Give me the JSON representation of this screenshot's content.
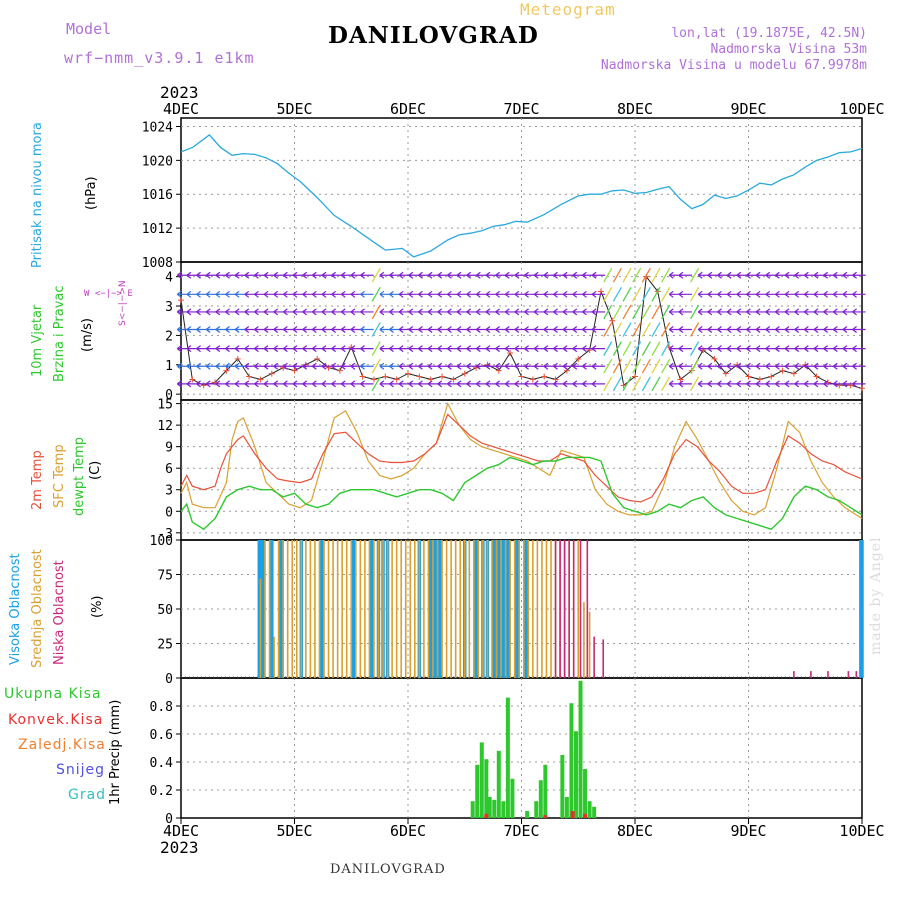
{
  "header": {
    "model_label": "Model",
    "model_name": "wrf−nmm_v3.9.1  e1km",
    "station": "DANILOVGRAD",
    "meteogram": "Meteogram",
    "lonlat": "lon,lat (19.1875E, 42.5N)",
    "elevation": "Nadmorska Visina 53m",
    "model_elevation": "Nadmorska Visina u modelu 67.9978m"
  },
  "footer": {
    "station": "DANILOVGRAD",
    "credit": "made by Angel"
  },
  "time_axis": {
    "labels": [
      "4DEC",
      "5DEC",
      "6DEC",
      "7DEC",
      "8DEC",
      "9DEC",
      "10DEC"
    ],
    "year": "2023"
  },
  "panels": {
    "pressure": {
      "label": "Pritisak na nivou mora",
      "unit": "(hPa)"
    },
    "wind": {
      "label1": "10m  Vjetar",
      "label2": "Brzina  i  Pravac",
      "unit": "(m/s)",
      "compass": "W  <−|−>  E",
      "compass_v": "S<−|−>N"
    },
    "temp": {
      "label1": "2m Temp",
      "label2": "SFC Temp",
      "label3": "dewpt Temp",
      "unit": "(C)"
    },
    "cloud": {
      "label1": "Visoka Oblacnost",
      "label2": "Srednja Oblacnost",
      "label3": "Niska Oblacnost",
      "unit": "(%)"
    },
    "precip": {
      "label": "1hr  Precip  (mm)",
      "legend": [
        "Ukupna Kisa",
        "Konvek.Kisa",
        "Zaledj.Kisa",
        "Snijeg",
        "Grad"
      ]
    }
  },
  "colors": {
    "pressure": "#29a9e0",
    "temp2m": "#e8503a",
    "sfc": "#d9a030",
    "dewpt": "#2ec82e",
    "high_cloud": "#1aa0e6",
    "mid_cloud": "#d9a030",
    "low_cloud": "#c8287a",
    "rain": "#2ec82e",
    "conv": "#e83030",
    "freezing": "#f08030",
    "snow": "#5050e0",
    "hail": "#30c0c0",
    "wind_barb": "#8020d0"
  },
  "chart_data": [
    {
      "type": "line",
      "title": "Pritisak na nivou mora",
      "ylabel": "(hPa)",
      "ylim": [
        1008,
        1025
      ],
      "yticks": [
        1008,
        1012,
        1016,
        1020,
        1024
      ],
      "xlim": [
        0,
        6
      ],
      "series": [
        {
          "x": [
            0,
            0.1,
            0.2,
            0.25,
            0.35,
            0.45,
            0.55,
            0.65,
            0.75,
            0.85,
            0.95,
            1.05,
            1.2,
            1.35,
            1.5,
            1.65,
            1.8,
            1.95,
            2.05,
            2.2,
            2.35,
            2.45,
            2.55,
            2.65,
            2.75,
            2.85,
            2.95,
            3.05,
            3.2,
            3.35,
            3.5,
            3.6,
            3.7,
            3.8,
            3.9,
            4.0,
            4.1,
            4.2,
            4.3,
            4.4,
            4.5,
            4.6,
            4.7,
            4.8,
            4.9,
            5.0,
            5.1,
            5.2,
            5.3,
            5.4,
            5.5,
            5.6,
            5.7,
            5.8,
            5.9,
            6.0
          ],
          "y": [
            1021,
            1021.5,
            1022.5,
            1023,
            1021.5,
            1020.6,
            1020.8,
            1020.7,
            1020.3,
            1019.6,
            1018.5,
            1017.5,
            1015.6,
            1013.5,
            1012.2,
            1010.8,
            1009.4,
            1009.6,
            1008.6,
            1009.3,
            1010.6,
            1011.2,
            1011.4,
            1011.7,
            1012.2,
            1012.4,
            1012.8,
            1012.7,
            1013.6,
            1014.8,
            1015.8,
            1016.0,
            1016.0,
            1016.4,
            1016.5,
            1016.1,
            1016.2,
            1016.6,
            1016.9,
            1015.4,
            1014.3,
            1014.8,
            1015.9,
            1015.5,
            1015.8,
            1016.5,
            1017.3,
            1017.1,
            1017.8,
            1018.3,
            1019.2,
            1020.0,
            1020.4,
            1020.9,
            1021.0,
            1021.4
          ]
        }
      ]
    },
    {
      "type": "line",
      "title": "10m Vjetar Brzina i Pravac",
      "ylabel": "(m/s)",
      "ylim": [
        -0.2,
        4.5
      ],
      "yticks": [
        0,
        1,
        2,
        3,
        4
      ],
      "xlim": [
        0,
        6
      ],
      "series": [
        {
          "x": [
            0,
            0.1,
            0.2,
            0.3,
            0.4,
            0.5,
            0.6,
            0.7,
            0.8,
            0.9,
            1.0,
            1.1,
            1.2,
            1.3,
            1.4,
            1.5,
            1.6,
            1.7,
            1.8,
            1.9,
            2.0,
            2.1,
            2.2,
            2.3,
            2.4,
            2.5,
            2.6,
            2.7,
            2.8,
            2.9,
            3.0,
            3.1,
            3.2,
            3.3,
            3.4,
            3.5,
            3.6,
            3.7,
            3.8,
            3.9,
            4.0,
            4.1,
            4.2,
            4.3,
            4.4,
            4.5,
            4.6,
            4.7,
            4.8,
            4.9,
            5.0,
            5.1,
            5.2,
            5.3,
            5.4,
            5.5,
            5.6,
            5.7,
            5.8,
            5.9,
            6.0
          ],
          "y": [
            3.2,
            0.5,
            0.3,
            0.4,
            0.8,
            1.2,
            0.6,
            0.5,
            0.7,
            0.9,
            0.8,
            1.0,
            1.2,
            0.9,
            0.8,
            1.6,
            0.6,
            0.5,
            0.6,
            0.5,
            0.7,
            0.6,
            0.5,
            0.6,
            0.5,
            0.7,
            0.9,
            1.0,
            0.8,
            1.4,
            0.6,
            0.5,
            0.6,
            0.5,
            0.8,
            1.2,
            1.5,
            3.5,
            2.5,
            0.3,
            0.6,
            4.0,
            3.5,
            1.6,
            0.5,
            0.8,
            1.5,
            1.2,
            0.7,
            1.0,
            0.6,
            0.5,
            0.6,
            0.8,
            0.7,
            1.0,
            0.6,
            0.4,
            0.3,
            0.3,
            0.2
          ]
        }
      ]
    },
    {
      "type": "line",
      "title": "2m Temp / SFC Temp / dewpt Temp",
      "ylabel": "(C)",
      "ylim": [
        -4,
        15.5
      ],
      "yticks": [
        -3,
        0,
        3,
        6,
        9,
        12,
        15
      ],
      "xlim": [
        0,
        6
      ],
      "series": [
        {
          "name": "2m Temp",
          "x": [
            0,
            0.05,
            0.1,
            0.2,
            0.3,
            0.35,
            0.4,
            0.5,
            0.55,
            0.65,
            0.75,
            0.85,
            0.95,
            1.05,
            1.15,
            1.25,
            1.35,
            1.45,
            1.55,
            1.65,
            1.75,
            1.85,
            1.95,
            2.05,
            2.15,
            2.25,
            2.35,
            2.45,
            2.55,
            2.65,
            2.75,
            2.85,
            2.95,
            3.05,
            3.15,
            3.25,
            3.35,
            3.45,
            3.55,
            3.65,
            3.75,
            3.85,
            3.95,
            4.05,
            4.15,
            4.25,
            4.35,
            4.45,
            4.55,
            4.65,
            4.75,
            4.85,
            4.95,
            5.05,
            5.15,
            5.25,
            5.35,
            5.45,
            5.55,
            5.65,
            5.75,
            5.85,
            6.0
          ],
          "y": [
            3.5,
            5,
            3.5,
            3,
            3.5,
            6,
            8,
            10,
            10.5,
            8,
            6,
            4.5,
            4.2,
            4.0,
            4.5,
            8,
            10.8,
            11,
            9.5,
            8,
            7,
            6.8,
            6.8,
            7,
            8,
            9.5,
            13.5,
            12,
            10.5,
            9.5,
            9,
            8.5,
            8,
            7.5,
            7,
            7,
            8,
            7.5,
            7,
            5,
            3.5,
            2,
            1.5,
            1.3,
            2,
            4.5,
            8,
            10,
            9,
            7,
            5.5,
            3.5,
            2.5,
            2.5,
            3,
            7,
            10.5,
            9.5,
            8,
            7,
            6.5,
            5.5,
            4.5
          ]
        },
        {
          "name": "SFC Temp",
          "x": [
            0,
            0.05,
            0.1,
            0.2,
            0.3,
            0.4,
            0.45,
            0.5,
            0.55,
            0.65,
            0.75,
            0.85,
            0.95,
            1.05,
            1.15,
            1.25,
            1.35,
            1.45,
            1.55,
            1.65,
            1.75,
            1.85,
            1.95,
            2.05,
            2.15,
            2.25,
            2.35,
            2.45,
            2.55,
            2.65,
            2.75,
            2.85,
            2.95,
            3.05,
            3.15,
            3.25,
            3.35,
            3.45,
            3.55,
            3.65,
            3.75,
            3.85,
            3.95,
            4.05,
            4.15,
            4.25,
            4.35,
            4.45,
            4.55,
            4.65,
            4.75,
            4.85,
            4.95,
            5.05,
            5.15,
            5.25,
            5.35,
            5.45,
            5.55,
            5.65,
            5.75,
            5.85,
            6.0
          ],
          "y": [
            2.5,
            4,
            1,
            0.5,
            0.5,
            4,
            10,
            12.5,
            13,
            9,
            4,
            2.5,
            1,
            0.5,
            1.5,
            7,
            13,
            14,
            11,
            7,
            5,
            4.5,
            5,
            6,
            8,
            9.5,
            15,
            12,
            10,
            9,
            8.5,
            8,
            7.5,
            7,
            6,
            5,
            8.5,
            8,
            7.5,
            3,
            1,
            0,
            -0.5,
            -0.5,
            0,
            3.5,
            9,
            12.5,
            10,
            7,
            4,
            1.5,
            0,
            -0.5,
            0.5,
            6,
            12.5,
            11,
            7,
            4,
            2,
            0.5,
            -1
          ]
        },
        {
          "name": "dewpt Temp",
          "x": [
            0,
            0.05,
            0.1,
            0.2,
            0.3,
            0.4,
            0.5,
            0.6,
            0.7,
            0.8,
            0.9,
            1.0,
            1.1,
            1.2,
            1.3,
            1.4,
            1.5,
            1.6,
            1.7,
            1.8,
            1.9,
            2.0,
            2.1,
            2.2,
            2.3,
            2.4,
            2.5,
            2.6,
            2.7,
            2.8,
            2.9,
            3.0,
            3.1,
            3.2,
            3.3,
            3.4,
            3.5,
            3.6,
            3.7,
            3.8,
            3.9,
            4.0,
            4.1,
            4.2,
            4.3,
            4.4,
            4.5,
            4.6,
            4.7,
            4.8,
            4.9,
            5.0,
            5.1,
            5.2,
            5.3,
            5.4,
            5.5,
            5.6,
            5.7,
            5.8,
            5.9,
            6.0
          ],
          "y": [
            0,
            1,
            -1.5,
            -2.5,
            -1,
            2,
            3,
            3.5,
            3,
            3,
            2,
            2.5,
            1,
            0.5,
            1,
            2.5,
            3,
            3,
            3,
            2.5,
            2,
            2.5,
            3,
            3,
            2.5,
            1.5,
            4,
            5,
            6,
            6.5,
            7.5,
            7,
            6.5,
            7,
            7,
            7.5,
            7.5,
            7.5,
            7,
            2.5,
            0.5,
            0,
            -0.5,
            0,
            1,
            0.5,
            1.5,
            2,
            0.5,
            -0.5,
            -1,
            -1.5,
            -2,
            -2.5,
            -1,
            2,
            3.5,
            3,
            2,
            1.5,
            0.5,
            -0.5
          ]
        }
      ]
    },
    {
      "type": "bar",
      "title": "Visoka / Srednja / Niska Oblacnost",
      "ylabel": "(%)",
      "ylim": [
        0,
        100
      ],
      "yticks": [
        0,
        25,
        50,
        75,
        100
      ],
      "xlim": [
        0,
        6
      ],
      "series": [
        {
          "name": "Visoka Oblacnost",
          "x": [
            0.69,
            0.72,
            0.8,
            0.88,
            1.06,
            1.24,
            1.52,
            1.68,
            1.74,
            1.78,
            1.82,
            2.1,
            2.2,
            2.24,
            2.28,
            2.5,
            2.6,
            2.66,
            2.7,
            2.76,
            2.8,
            2.84,
            2.88,
            2.96,
            3.04,
            5.99,
            6.0
          ],
          "values": [
            100,
            100,
            100,
            100,
            100,
            100,
            100,
            100,
            100,
            100,
            100,
            100,
            100,
            100,
            100,
            100,
            100,
            100,
            100,
            100,
            100,
            100,
            100,
            100,
            100,
            100,
            100
          ]
        },
        {
          "name": "Srednja Oblacnost",
          "x": [
            0.7,
            0.74,
            0.78,
            0.82,
            0.86,
            0.9,
            0.94,
            0.98,
            1.02,
            1.06,
            1.1,
            1.14,
            1.18,
            1.22,
            1.26,
            1.3,
            1.34,
            1.38,
            1.42,
            1.46,
            1.5,
            1.54,
            1.58,
            1.62,
            1.66,
            1.7,
            1.74,
            1.78,
            1.82,
            1.86,
            1.9,
            1.94,
            1.98,
            2.02,
            2.06,
            2.1,
            2.14,
            2.18,
            2.22,
            2.26,
            2.3,
            2.34,
            2.38,
            2.42,
            2.46,
            2.5,
            2.54,
            2.58,
            2.62,
            2.66,
            2.7,
            2.74,
            2.78,
            2.82,
            2.86,
            2.9,
            2.94,
            2.98,
            3.02,
            3.06,
            3.1,
            3.14,
            3.18,
            3.22,
            3.26,
            3.3,
            3.34,
            3.38,
            3.42,
            3.46,
            3.5,
            3.55,
            3.6
          ],
          "values": [
            72,
            100,
            100,
            30,
            100,
            100,
            100,
            100,
            100,
            100,
            100,
            100,
            100,
            100,
            100,
            100,
            100,
            100,
            100,
            100,
            100,
            100,
            100,
            100,
            100,
            100,
            100,
            100,
            100,
            100,
            100,
            100,
            100,
            100,
            100,
            100,
            100,
            100,
            100,
            100,
            100,
            100,
            100,
            100,
            100,
            100,
            100,
            100,
            100,
            100,
            100,
            100,
            100,
            100,
            100,
            100,
            100,
            100,
            100,
            100,
            100,
            100,
            100,
            100,
            100,
            100,
            100,
            100,
            100,
            100,
            100,
            55,
            48
          ]
        },
        {
          "name": "Niska Oblacnost",
          "x": [
            3.3,
            3.34,
            3.38,
            3.42,
            3.46,
            3.52,
            3.58,
            3.64,
            3.72,
            5.4,
            5.55,
            5.7,
            5.88,
            5.95
          ],
          "values": [
            100,
            100,
            100,
            100,
            100,
            100,
            100,
            30,
            28,
            5,
            5,
            5,
            5,
            5
          ]
        }
      ]
    },
    {
      "type": "bar",
      "title": "1hr Precip",
      "ylabel": "1hr  Precip  (mm)",
      "ylim": [
        0,
        1.0
      ],
      "yticks": [
        0,
        0.2,
        0.4,
        0.6,
        0.8
      ],
      "xlim": [
        0,
        6
      ],
      "series": [
        {
          "name": "Ukupna Kisa",
          "x": [
            2.57,
            2.61,
            2.65,
            2.69,
            2.72,
            2.76,
            2.8,
            2.84,
            2.88,
            2.92,
            3.05,
            3.13,
            3.17,
            3.21,
            3.36,
            3.4,
            3.44,
            3.48,
            3.52,
            3.56,
            3.6,
            3.64
          ],
          "values": [
            0.12,
            0.38,
            0.54,
            0.42,
            0.15,
            0.13,
            0.48,
            0.12,
            0.86,
            0.28,
            0.05,
            0.12,
            0.27,
            0.38,
            0.45,
            0.15,
            0.82,
            0.62,
            0.98,
            0.35,
            0.12,
            0.08
          ]
        },
        {
          "name": "Konvek.Kisa",
          "x": [
            2.69,
            3.21,
            3.45,
            3.56
          ],
          "values": [
            0.03,
            0.02,
            0.05,
            0.03
          ]
        }
      ]
    }
  ]
}
